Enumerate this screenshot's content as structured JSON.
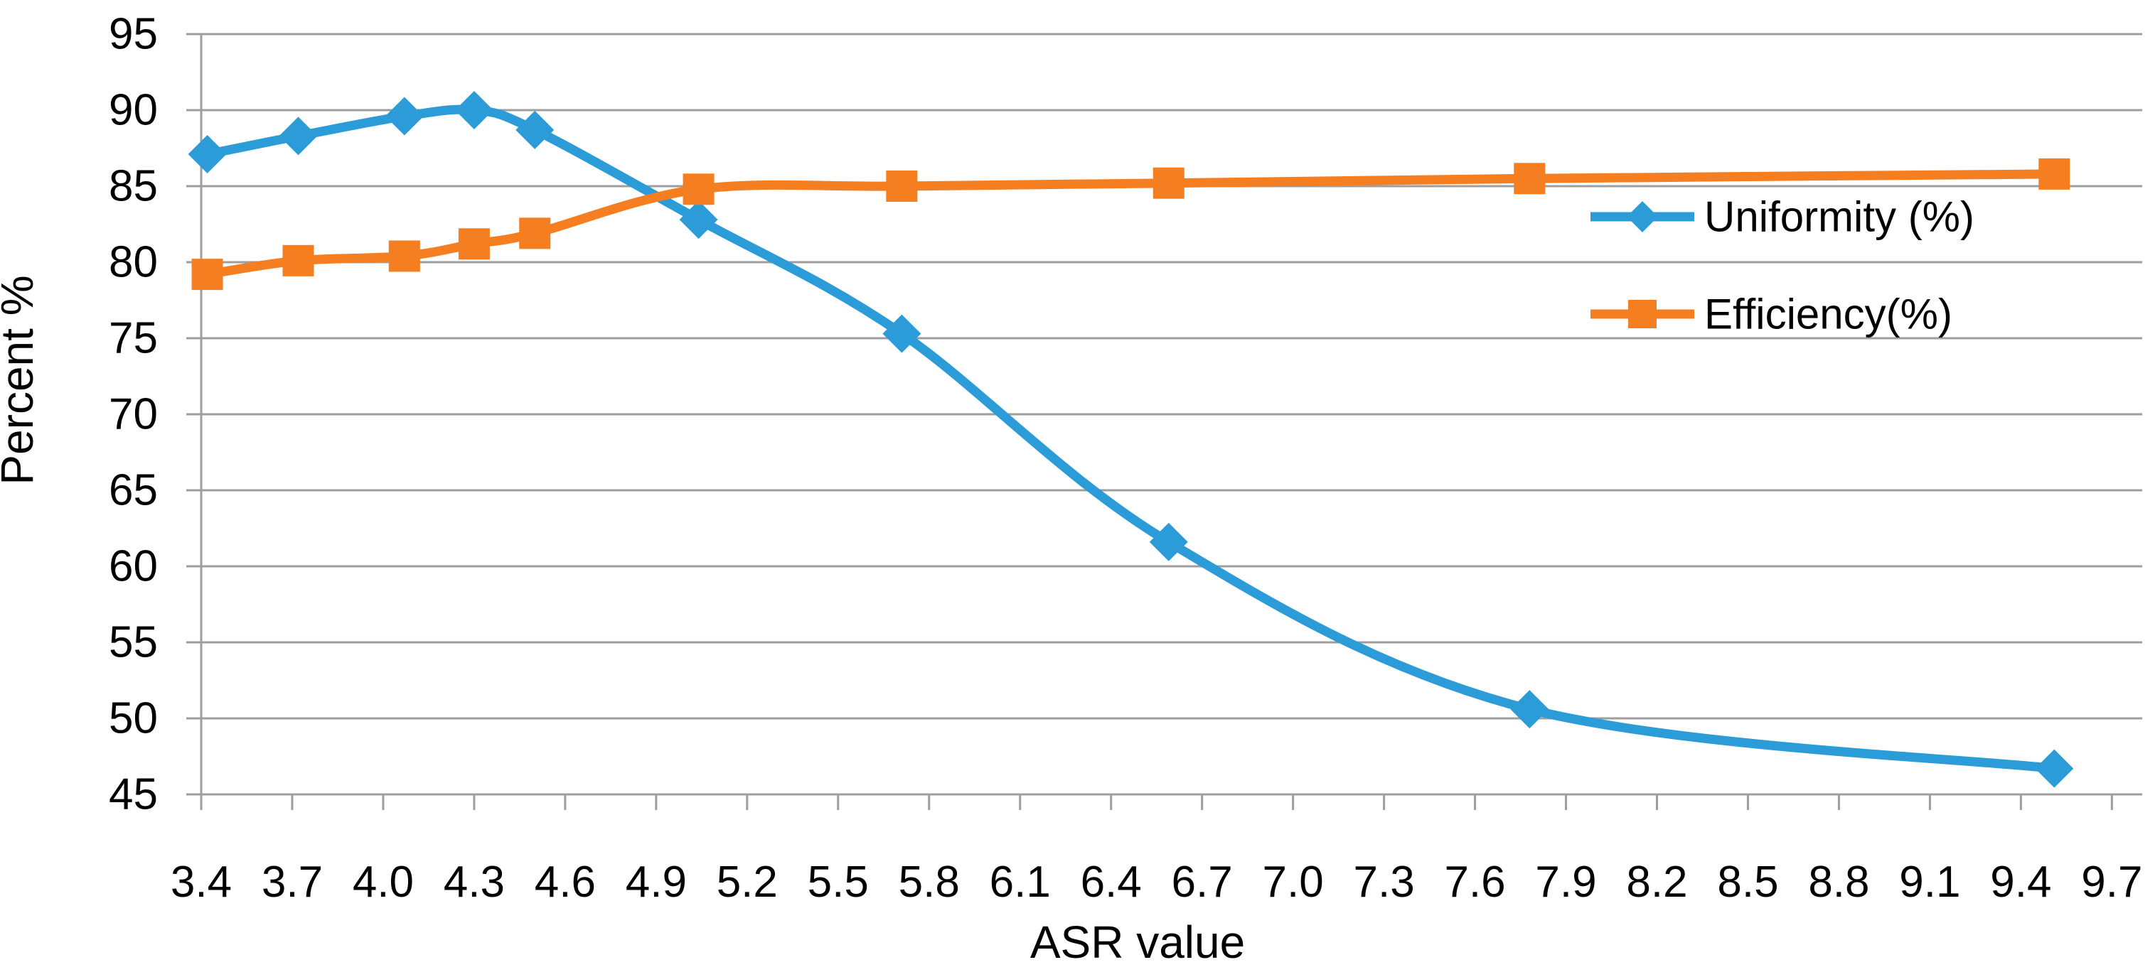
{
  "figure": {
    "background": "#ffffff"
  },
  "chart_data": {
    "type": "line",
    "title": "",
    "xlabel": "ASR value",
    "ylabel": "Percent %",
    "xlim": [
      3.4,
      9.8
    ],
    "ylim": [
      45,
      95
    ],
    "x_tick_step": 0.3,
    "y_tick_step": 5,
    "x_tick_labels": [
      "3.4",
      "3.7",
      "4.0",
      "4.3",
      "4.6",
      "4.9",
      "5.2",
      "5.5",
      "5.8",
      "6.1",
      "6.4",
      "6.7",
      "7.0",
      "7.3",
      "7.6",
      "7.9",
      "8.2",
      "8.5",
      "8.8",
      "9.1",
      "9.4",
      "9.7"
    ],
    "y_tick_labels": [
      "95",
      "90",
      "85",
      "80",
      "75",
      "70",
      "65",
      "60",
      "55",
      "50",
      "45"
    ],
    "grid": "horizontal",
    "grid_color": "#9E9E9E",
    "axis_color": "#9E9E9E",
    "text_color": "#000000",
    "legend": {
      "position": "inside-right",
      "entries": [
        "Uniformity (%)",
        "Efficiency(%)"
      ]
    },
    "series": [
      {
        "name": "Uniformity (%)",
        "color": "#2B9CD8",
        "marker": "diamond",
        "smooth": true,
        "x": [
          3.42,
          3.72,
          4.07,
          4.3,
          4.5,
          5.04,
          5.71,
          6.59,
          7.78,
          9.51
        ],
        "y": [
          87.1,
          88.3,
          89.6,
          90.0,
          88.7,
          82.8,
          75.3,
          61.6,
          50.6,
          46.7
        ]
      },
      {
        "name": "Efficiency(%)",
        "color": "#F57E20",
        "marker": "square",
        "smooth": true,
        "x": [
          3.42,
          3.72,
          4.07,
          4.3,
          4.5,
          5.04,
          5.71,
          6.59,
          7.78,
          9.51
        ],
        "y": [
          79.2,
          80.1,
          80.4,
          81.2,
          81.9,
          84.8,
          85.0,
          85.2,
          85.5,
          85.8
        ]
      }
    ]
  }
}
